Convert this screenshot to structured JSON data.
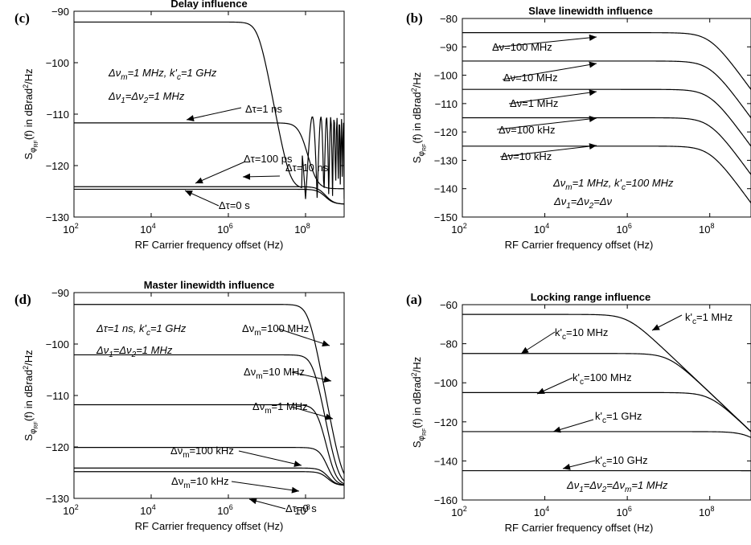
{
  "chart_data": [
    {
      "letter": "(c)",
      "type": "line",
      "title": "Delay influence",
      "xlabel": "RF Carrier frequency offset (Hz)",
      "ylabel": "SφRF(f) in dBrad2/Hz",
      "x_scale": "log",
      "xlim": [
        100,
        1000000000
      ],
      "ylim": [
        -130,
        -90
      ],
      "xticks": [
        "10^2",
        "10^4",
        "10^6",
        "10^8"
      ],
      "yticks": [
        -130,
        -120,
        -110,
        -100,
        -90
      ],
      "notes": [
        "Δνm=1 MHz, k'c=1 GHz",
        "Δν1=Δν2=1 MHz"
      ],
      "series": [
        {
          "label": "Δτ=10 ns",
          "plateau": -92.1,
          "fc": 6000000,
          "n": 4,
          "floor": -124.5,
          "oscillating": true,
          "label_at": [
            1000000,
            -92.1
          ]
        },
        {
          "label": "Δτ=1 ns",
          "plateau": -111.7,
          "fc": 80000000,
          "n": 4,
          "floor": -124.5,
          "oscillating": false,
          "label_at": [
            1000,
            -111.7
          ]
        },
        {
          "label": "Δτ=100 ps",
          "plateau": -124.1,
          "fc": 300000000,
          "n": 4,
          "floor": -127.5,
          "oscillating": false,
          "label_at": [
            2000,
            -124.1
          ]
        },
        {
          "label": "Δτ=0 s",
          "plateau": -124.6,
          "fc": 300000000,
          "n": 4,
          "floor": -127.5,
          "oscillating": false,
          "label_at": [
            1000,
            -124.6
          ]
        }
      ]
    },
    {
      "letter": "(b)",
      "type": "line",
      "title": "Slave linewidth influence",
      "xlabel": "RF Carrier frequency offset (Hz)",
      "ylabel": "SφRF(f) in dBrad2/Hz",
      "x_scale": "log",
      "xlim": [
        100,
        1000000000
      ],
      "ylim": [
        -150,
        -80
      ],
      "xticks": [
        "10^2",
        "10^4",
        "10^6",
        "10^8"
      ],
      "yticks": [
        -150,
        -140,
        -130,
        -120,
        -110,
        -100,
        -90,
        -80
      ],
      "notes": [
        "Δνm=1 MHz, k'c=100 MHz",
        "Δν1=Δν2=Δν"
      ],
      "series": [
        {
          "label": "Δν=100 MHz",
          "plateau": -85,
          "fc": 100000000,
          "n": 2,
          "label_at": [
            200000,
            -85
          ]
        },
        {
          "label": "Δν=10 MHz",
          "plateau": -95,
          "fc": 100000000,
          "n": 2,
          "label_at": [
            200000,
            -95
          ]
        },
        {
          "label": "Δν=1 MHz",
          "plateau": -105,
          "fc": 100000000,
          "n": 2,
          "label_at": [
            200000,
            -105
          ]
        },
        {
          "label": "Δν=100 kHz",
          "plateau": -115,
          "fc": 100000000,
          "n": 2,
          "label_at": [
            200000,
            -115
          ]
        },
        {
          "label": "Δν=10 kHz",
          "plateau": -125,
          "fc": 100000000,
          "n": 2,
          "label_at": [
            200000,
            -125
          ]
        }
      ]
    },
    {
      "letter": "(d)",
      "type": "line",
      "title": "Master linewidth influence",
      "xlabel": "RF Carrier frequency offset (Hz)",
      "ylabel": "SφRF(f) in dBrad2/Hz",
      "x_scale": "log",
      "xlim": [
        100,
        1000000000
      ],
      "ylim": [
        -130,
        -90
      ],
      "xticks": [
        "10^2",
        "10^4",
        "10^6",
        "10^8"
      ],
      "yticks": [
        -130,
        -120,
        -110,
        -100,
        -90
      ],
      "notes": [
        "Δτ=1 ns, k'c=1 GHz",
        "Δν1=Δν2=1 MHz"
      ],
      "series": [
        {
          "label": "Δνm=100 MHz",
          "plateau": -92.3,
          "fc": 120000000,
          "n": 4,
          "floor": -127.5,
          "label_at": [
            700000000,
            -92.3
          ]
        },
        {
          "label": "Δνm=10 MHz",
          "plateau": -102.1,
          "fc": 160000000,
          "n": 4,
          "floor": -127.5,
          "label_at": [
            600000000,
            -102.1
          ]
        },
        {
          "label": "Δνm=1 MHz",
          "plateau": -111.8,
          "fc": 220000000,
          "n": 4,
          "floor": -127.5,
          "label_at": [
            600000000,
            -111.8
          ]
        },
        {
          "label": "Δνm=100 kHz",
          "plateau": -120.1,
          "fc": 300000000,
          "n": 4,
          "floor": -127.5,
          "label_at": [
            50000000,
            -120.1
          ]
        },
        {
          "label": "Δνm=10 kHz",
          "plateau": -124.1,
          "fc": 350000000,
          "n": 4,
          "floor": -127.5,
          "label_at": [
            50000000,
            -124.1
          ]
        },
        {
          "label": "Δτ=0 s",
          "plateau": -124.8,
          "fc": 350000000,
          "n": 4,
          "floor": -127.5,
          "label_at": [
            10000000,
            -124.8
          ]
        }
      ]
    },
    {
      "letter": "(a)",
      "type": "line",
      "title": "Locking range influence",
      "xlabel": "RF Carrier frequency offset (Hz)",
      "ylabel": "SφRF(f) in dBrad2/Hz",
      "x_scale": "log",
      "xlim": [
        100,
        1000000000
      ],
      "ylim": [
        -160,
        -60
      ],
      "xticks": [
        "10^2",
        "10^4",
        "10^6",
        "10^8"
      ],
      "yticks": [
        -160,
        -140,
        -120,
        -100,
        -80,
        -60
      ],
      "notes": [
        "Δν1=Δν2=Δνm=1 MHz"
      ],
      "series": [
        {
          "label": "k'c=1 MHz",
          "plateau": -65,
          "fc": 1000000,
          "n": 2,
          "label_at": [
            2000000,
            -72
          ]
        },
        {
          "label": "k'c=10 MHz",
          "plateau": -85,
          "fc": 10000000,
          "n": 2,
          "label_at": [
            1000,
            -85
          ]
        },
        {
          "label": "k'c=100 MHz",
          "plateau": -105,
          "fc": 100000000,
          "n": 2,
          "label_at": [
            10000,
            -105
          ]
        },
        {
          "label": "k'c=1 GHz",
          "plateau": -125,
          "fc": 1000000000,
          "n": 2,
          "label_at": [
            50000,
            -125
          ]
        },
        {
          "label": "k'c=10 GHz",
          "plateau": -145,
          "fc": 10000000000,
          "n": 2,
          "label_at": [
            50000,
            -145
          ]
        }
      ]
    }
  ]
}
